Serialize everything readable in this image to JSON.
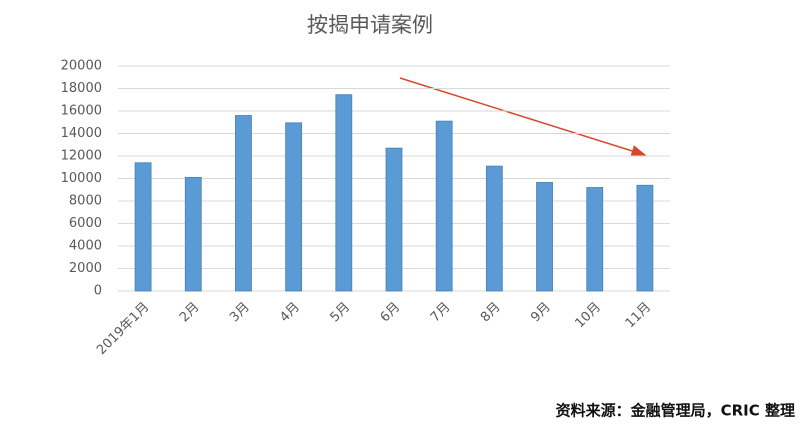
{
  "chart_data": {
    "type": "bar",
    "title": "按揭申请案例",
    "categories": [
      "2019年1月",
      "2月",
      "3月",
      "4月",
      "5月",
      "6月",
      "7月",
      "8月",
      "9月",
      "10月",
      "11月"
    ],
    "values": [
      11400,
      10100,
      15600,
      14950,
      17450,
      12700,
      15100,
      11100,
      9650,
      9200,
      9400
    ],
    "color": "#5b9bd5",
    "ylim": [
      0,
      20000
    ],
    "yticks": [
      0,
      2000,
      4000,
      6000,
      8000,
      10000,
      12000,
      14000,
      16000,
      18000,
      20000
    ],
    "grid": true,
    "source": "资料来源：金融管理局，CRIC 整理"
  }
}
